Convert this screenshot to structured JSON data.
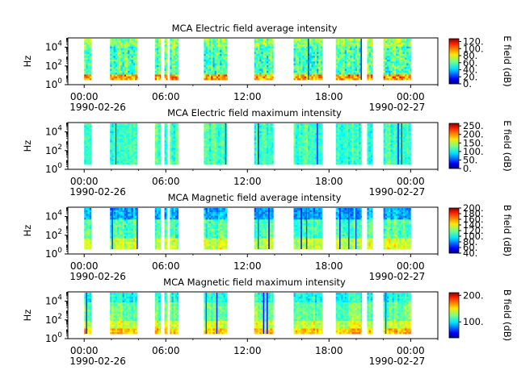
{
  "chart_data": [
    {
      "type": "heatmap",
      "title": "MCA  Electric field average intensity",
      "ylabel": "Hz",
      "yscale": "log",
      "ylim": [
        1,
        100000
      ],
      "y_ticks": [
        {
          "base": "10",
          "exp": "0"
        },
        {
          "base": "10",
          "exp": "2"
        },
        {
          "base": "10",
          "exp": "4"
        }
      ],
      "x_ticks": [
        "00:00",
        "06:00",
        "12:00",
        "18:00",
        "00:00"
      ],
      "x_start_label": "1990-02-26",
      "x_end_label": "1990-02-27",
      "colorbar_label": "E field (dB)",
      "colorbar_range": [
        0,
        128
      ],
      "colorbar_ticks": [
        "0.",
        "20.",
        "40.",
        "60.",
        "80.",
        "100.",
        "120."
      ],
      "colormap": "jet",
      "profile": "high_low",
      "data_intervals_hours": [
        [
          0.0,
          0.5
        ],
        [
          1.9,
          3.9
        ],
        [
          5.2,
          5.6
        ],
        [
          5.9,
          6.1
        ],
        [
          6.3,
          6.9
        ],
        [
          8.8,
          10.5
        ],
        [
          12.5,
          13.9
        ],
        [
          15.4,
          17.5
        ],
        [
          18.5,
          20.4
        ],
        [
          20.8,
          21.2
        ],
        [
          22.0,
          24.0
        ]
      ]
    },
    {
      "type": "heatmap",
      "title": "MCA  Electric field maximum intensity",
      "ylabel": "Hz",
      "yscale": "log",
      "ylim": [
        1,
        100000
      ],
      "y_ticks": [
        {
          "base": "10",
          "exp": "0"
        },
        {
          "base": "10",
          "exp": "2"
        },
        {
          "base": "10",
          "exp": "4"
        }
      ],
      "x_ticks": [
        "00:00",
        "06:00",
        "12:00",
        "18:00",
        "00:00"
      ],
      "x_start_label": "1990-02-26",
      "x_end_label": "1990-02-27",
      "colorbar_label": "E field (dB)",
      "colorbar_range": [
        0,
        265
      ],
      "colorbar_ticks": [
        "0.",
        "50.",
        "100.",
        "150.",
        "200.",
        "250."
      ],
      "colormap": "jet",
      "profile": "uniform",
      "data_intervals_hours": [
        [
          0.0,
          0.5
        ],
        [
          1.9,
          3.9
        ],
        [
          5.2,
          5.6
        ],
        [
          5.9,
          6.1
        ],
        [
          6.3,
          6.9
        ],
        [
          8.8,
          10.5
        ],
        [
          12.5,
          13.9
        ],
        [
          15.4,
          17.5
        ],
        [
          18.5,
          20.4
        ],
        [
          20.8,
          21.2
        ],
        [
          22.0,
          24.0
        ]
      ]
    },
    {
      "type": "heatmap",
      "title": "MCA  Magnetic field average intensity",
      "ylabel": "Hz",
      "yscale": "log",
      "ylim": [
        1,
        100000
      ],
      "y_ticks": [
        {
          "base": "10",
          "exp": "0"
        },
        {
          "base": "10",
          "exp": "2"
        },
        {
          "base": "10",
          "exp": "4"
        }
      ],
      "x_ticks": [
        "00:00",
        "06:00",
        "12:00",
        "18:00",
        "00:00"
      ],
      "x_start_label": "1990-02-26",
      "x_end_label": "1990-02-27",
      "colorbar_label": "B field (dB)",
      "colorbar_range": [
        40,
        200
      ],
      "colorbar_ticks": [
        "40.",
        "60.",
        "80.",
        "100.",
        "120.",
        "140.",
        "160.",
        "180.",
        "200."
      ],
      "colormap": "jet",
      "profile": "low_band",
      "data_intervals_hours": [
        [
          0.0,
          0.5
        ],
        [
          1.9,
          3.9
        ],
        [
          5.2,
          5.6
        ],
        [
          5.9,
          6.1
        ],
        [
          6.3,
          6.9
        ],
        [
          8.8,
          10.5
        ],
        [
          12.5,
          13.9
        ],
        [
          15.4,
          17.5
        ],
        [
          18.5,
          20.4
        ],
        [
          20.8,
          21.2
        ],
        [
          22.0,
          24.0
        ]
      ]
    },
    {
      "type": "heatmap",
      "title": "MCA  Magnetic field maximum intensity",
      "ylabel": "Hz",
      "yscale": "log",
      "ylim": [
        1,
        100000
      ],
      "y_ticks": [
        {
          "base": "10",
          "exp": "0"
        },
        {
          "base": "10",
          "exp": "2"
        },
        {
          "base": "10",
          "exp": "4"
        }
      ],
      "x_ticks": [
        "00:00",
        "06:00",
        "12:00",
        "18:00",
        "00:00"
      ],
      "x_start_label": "1990-02-26",
      "x_end_label": "1990-02-27",
      "colorbar_label": "B field (dB)",
      "colorbar_range": [
        40,
        210
      ],
      "colorbar_ticks": [
        "100.",
        "200."
      ],
      "colormap": "jet",
      "profile": "low_band_strong",
      "data_intervals_hours": [
        [
          0.0,
          0.5
        ],
        [
          1.9,
          3.9
        ],
        [
          5.2,
          5.6
        ],
        [
          5.9,
          6.1
        ],
        [
          6.3,
          6.9
        ],
        [
          8.8,
          10.5
        ],
        [
          12.5,
          13.9
        ],
        [
          15.4,
          17.5
        ],
        [
          18.5,
          20.4
        ],
        [
          20.8,
          21.2
        ],
        [
          22.0,
          24.0
        ]
      ]
    }
  ]
}
